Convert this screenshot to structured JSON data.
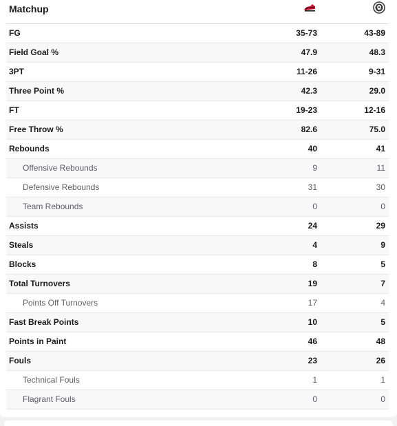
{
  "header": {
    "title": "Matchup",
    "away_logo_icon": "away-team-logo-icon",
    "home_logo_icon": "home-team-logo-icon"
  },
  "rows": [
    {
      "label": "FG",
      "away": "35-73",
      "home": "43-89",
      "sub": false
    },
    {
      "label": "Field Goal %",
      "away": "47.9",
      "home": "48.3",
      "sub": false
    },
    {
      "label": "3PT",
      "away": "11-26",
      "home": "9-31",
      "sub": false
    },
    {
      "label": "Three Point %",
      "away": "42.3",
      "home": "29.0",
      "sub": false
    },
    {
      "label": "FT",
      "away": "19-23",
      "home": "12-16",
      "sub": false
    },
    {
      "label": "Free Throw %",
      "away": "82.6",
      "home": "75.0",
      "sub": false
    },
    {
      "label": "Rebounds",
      "away": "40",
      "home": "41",
      "sub": false
    },
    {
      "label": "Offensive Rebounds",
      "away": "9",
      "home": "11",
      "sub": true
    },
    {
      "label": "Defensive Rebounds",
      "away": "31",
      "home": "30",
      "sub": true
    },
    {
      "label": "Team Rebounds",
      "away": "0",
      "home": "0",
      "sub": true
    },
    {
      "label": "Assists",
      "away": "24",
      "home": "29",
      "sub": false
    },
    {
      "label": "Steals",
      "away": "4",
      "home": "9",
      "sub": false
    },
    {
      "label": "Blocks",
      "away": "8",
      "home": "5",
      "sub": false
    },
    {
      "label": "Total Turnovers",
      "away": "19",
      "home": "7",
      "sub": false
    },
    {
      "label": "Points Off Turnovers",
      "away": "17",
      "home": "4",
      "sub": true
    },
    {
      "label": "Fast Break Points",
      "away": "10",
      "home": "5",
      "sub": false
    },
    {
      "label": "Points in Paint",
      "away": "46",
      "home": "48",
      "sub": false
    },
    {
      "label": "Fouls",
      "away": "23",
      "home": "26",
      "sub": false
    },
    {
      "label": "Technical Fouls",
      "away": "1",
      "home": "1",
      "sub": true
    },
    {
      "label": "Flagrant Fouls",
      "away": "0",
      "home": "0",
      "sub": true
    }
  ]
}
